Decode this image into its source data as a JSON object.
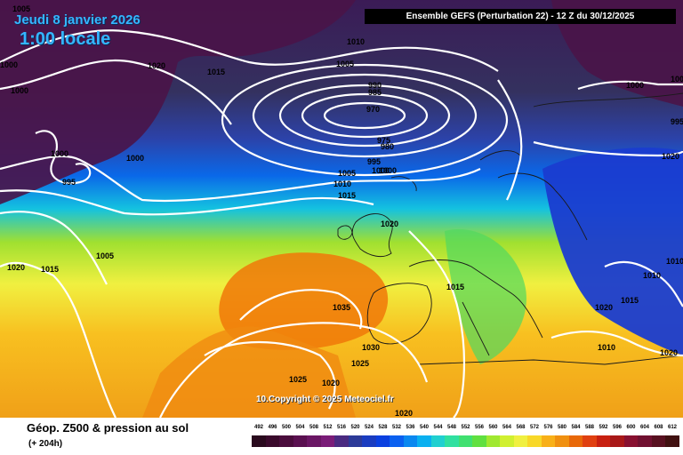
{
  "header": {
    "date": "Jeudi 8 janvier 2026",
    "local_time": "1:00 locale",
    "run_info": "Ensemble GEFS  (Perturbation 22)  -  12 Z du 30/12/2025"
  },
  "watermark": "10.Copyright © 2025 Meteociel.fr",
  "footer": {
    "field": "Géop. Z500 & pression au sol",
    "forecast_hour": "(+ 204h)"
  },
  "legend": {
    "values": [
      "492",
      "496",
      "500",
      "504",
      "508",
      "512",
      "516",
      "520",
      "524",
      "528",
      "532",
      "536",
      "540",
      "544",
      "548",
      "552",
      "556",
      "560",
      "564",
      "568",
      "572",
      "576",
      "580",
      "584",
      "588",
      "592",
      "596",
      "600",
      "604",
      "608",
      "612"
    ],
    "colors": [
      "#2a0a1e",
      "#3a0a2c",
      "#4a0c3c",
      "#5a1050",
      "#6a1664",
      "#7a1c78",
      "#4a2a80",
      "#2c3a98",
      "#1a3cc0",
      "#0a40e0",
      "#0a60f0",
      "#0a88f0",
      "#0ab0f0",
      "#20d0d0",
      "#30e0a0",
      "#40e070",
      "#60e040",
      "#a0e830",
      "#d0f030",
      "#f0f040",
      "#f8d828",
      "#f8b018",
      "#f09010",
      "#e86808",
      "#e04010",
      "#c82010",
      "#a81818",
      "#881030",
      "#701030",
      "#581020",
      "#401010"
    ]
  },
  "isobar_labels": [
    "1005",
    "1000",
    "1000",
    "1020",
    "1015",
    "1010",
    "1005",
    "990",
    "985",
    "970",
    "975",
    "980",
    "995",
    "1000",
    "1005",
    "1010",
    "1015",
    "1000",
    "995",
    "1000",
    "1000",
    "1020",
    "1015",
    "1005",
    "1020",
    "1015",
    "1035",
    "1030",
    "1025",
    "1020",
    "1025",
    "1020",
    "1010",
    "1020",
    "1015",
    "1010",
    "1010",
    "1020",
    "1000",
    "1000",
    "1020",
    "995"
  ]
}
